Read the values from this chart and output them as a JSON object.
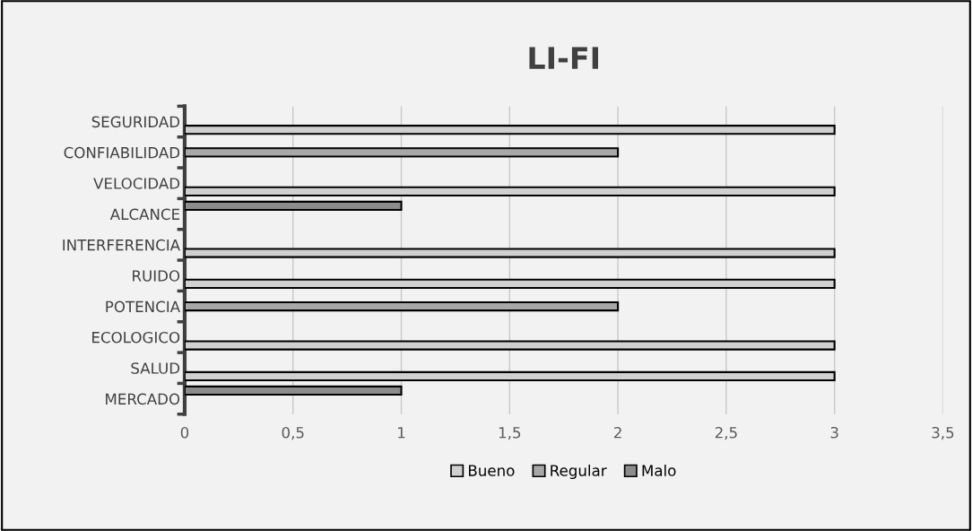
{
  "chart_data": {
    "type": "bar",
    "orientation": "horizontal",
    "title": "LI-FI",
    "categories": [
      "SEGURIDAD",
      "CONFIABILIDAD",
      "VELOCIDAD",
      "ALCANCE",
      "INTERFERENCIA",
      "RUIDO",
      "POTENCIA",
      "ECOLOGICO",
      "SALUD",
      "MERCADO"
    ],
    "series": [
      {
        "name": "Bueno",
        "color": "#d0d0d0",
        "values": [
          3,
          null,
          3,
          null,
          3,
          3,
          null,
          3,
          3,
          null
        ]
      },
      {
        "name": "Regular",
        "color": "#a8a8a8",
        "values": [
          null,
          2,
          null,
          null,
          null,
          null,
          2,
          null,
          null,
          null
        ]
      },
      {
        "name": "Malo",
        "color": "#8c8c8c",
        "values": [
          null,
          null,
          null,
          1,
          null,
          null,
          null,
          null,
          null,
          1
        ]
      }
    ],
    "xlim": [
      0,
      3.5
    ],
    "xticks": [
      0,
      {
        "value": 0.5,
        "label": "0,5"
      },
      1,
      {
        "value": 1.5,
        "label": "1,5"
      },
      2,
      {
        "value": 2.5,
        "label": "2,5"
      },
      3,
      {
        "value": 3.5,
        "label": "3,5"
      }
    ],
    "grid": "x",
    "legend": "bottom"
  }
}
